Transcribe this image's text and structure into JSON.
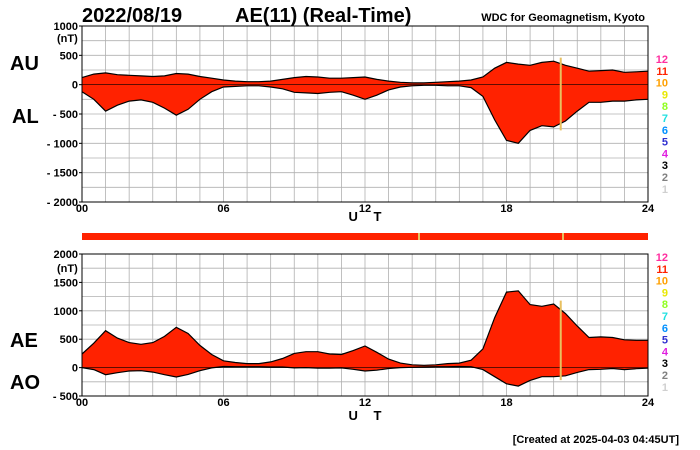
{
  "header": {
    "date": "2022/08/19",
    "title": "AE(11) (Real-Time)",
    "org": "WDC for Geomagnetism, Kyoto"
  },
  "footer": {
    "created": "[Created at 2025-04-03 04:45UT]"
  },
  "colors": {
    "fill": "#ff2200",
    "outline": "#000000",
    "grid": "#b0b0b0",
    "station_line": "#e8c060",
    "status_bar": "#ff2200"
  },
  "station_legend": [
    {
      "label": "12",
      "color": "#ff2fa0"
    },
    {
      "label": "11",
      "color": "#ff2200"
    },
    {
      "label": "10",
      "color": "#ffa000"
    },
    {
      "label": "9",
      "color": "#e8e800"
    },
    {
      "label": "8",
      "color": "#90ff20"
    },
    {
      "label": "7",
      "color": "#20e0e0"
    },
    {
      "label": "6",
      "color": "#0090ff"
    },
    {
      "label": "5",
      "color": "#3030d0"
    },
    {
      "label": "4",
      "color": "#e020e0"
    },
    {
      "label": "3",
      "color": "#000000"
    },
    {
      "label": "2",
      "color": "#808080"
    },
    {
      "label": "1",
      "color": "#d0d0d0"
    }
  ],
  "chart_data": [
    {
      "type": "area",
      "panel": "AU/AL",
      "labels": {
        "upper": "AU",
        "lower": "AL"
      },
      "unit": "(nT)",
      "xlabel": "U T",
      "xlim": [
        0,
        24
      ],
      "xticks": [
        "00",
        "06",
        "12",
        "18",
        "24"
      ],
      "ylim": [
        -2000,
        1000
      ],
      "yticks": [
        "1000",
        "500",
        "0",
        "- 500",
        "- 1000",
        "- 1500",
        "- 2000"
      ],
      "x": [
        0,
        0.5,
        1,
        1.5,
        2,
        2.5,
        3,
        3.5,
        4,
        4.5,
        5,
        5.5,
        6,
        6.5,
        7,
        7.5,
        8,
        8.5,
        9,
        9.5,
        10,
        10.5,
        11,
        11.5,
        12,
        12.5,
        13,
        13.5,
        14,
        14.5,
        15,
        15.5,
        16,
        16.5,
        17,
        17.5,
        18,
        18.5,
        19,
        19.5,
        20,
        20.5,
        21,
        21.5,
        22,
        22.5,
        23,
        23.5,
        24
      ],
      "series": [
        {
          "name": "AU",
          "values": [
            120,
            180,
            200,
            170,
            160,
            150,
            140,
            150,
            190,
            180,
            140,
            110,
            80,
            60,
            50,
            50,
            60,
            90,
            120,
            140,
            130,
            110,
            110,
            120,
            130,
            90,
            60,
            40,
            30,
            30,
            40,
            50,
            60,
            80,
            130,
            280,
            380,
            350,
            330,
            380,
            400,
            330,
            280,
            230,
            240,
            250,
            210,
            220,
            230
          ]
        },
        {
          "name": "AL",
          "values": [
            -120,
            -250,
            -450,
            -350,
            -280,
            -260,
            -300,
            -400,
            -520,
            -420,
            -250,
            -120,
            -40,
            -30,
            -20,
            -20,
            -40,
            -70,
            -130,
            -140,
            -150,
            -130,
            -120,
            -180,
            -250,
            -180,
            -90,
            -40,
            -20,
            -10,
            -10,
            -20,
            -20,
            -50,
            -200,
            -600,
            -950,
            -1000,
            -780,
            -700,
            -720,
            -620,
            -450,
            -300,
            -300,
            -280,
            -280,
            -260,
            -250
          ]
        }
      ]
    },
    {
      "type": "area",
      "panel": "AE/AO",
      "labels": {
        "upper": "AE",
        "lower": "AO"
      },
      "unit": "(nT)",
      "xlabel": "U T",
      "xlim": [
        0,
        24
      ],
      "xticks": [
        "00",
        "06",
        "12",
        "18",
        "24"
      ],
      "ylim": [
        -500,
        2000
      ],
      "yticks": [
        "2000",
        "1500",
        "1000",
        "500",
        "0",
        "- 500"
      ],
      "x": [
        0,
        0.5,
        1,
        1.5,
        2,
        2.5,
        3,
        3.5,
        4,
        4.5,
        5,
        5.5,
        6,
        6.5,
        7,
        7.5,
        8,
        8.5,
        9,
        9.5,
        10,
        10.5,
        11,
        11.5,
        12,
        12.5,
        13,
        13.5,
        14,
        14.5,
        15,
        15.5,
        16,
        16.5,
        17,
        17.5,
        18,
        18.5,
        19,
        19.5,
        20,
        20.5,
        21,
        21.5,
        22,
        22.5,
        23,
        23.5,
        24
      ],
      "series": [
        {
          "name": "AE",
          "values": [
            240,
            430,
            650,
            520,
            440,
            410,
            440,
            550,
            710,
            600,
            390,
            230,
            120,
            90,
            70,
            70,
            100,
            160,
            250,
            280,
            280,
            240,
            230,
            300,
            380,
            270,
            150,
            80,
            50,
            40,
            50,
            70,
            80,
            130,
            330,
            880,
            1330,
            1350,
            1110,
            1080,
            1120,
            950,
            730,
            530,
            540,
            530,
            490,
            480,
            480
          ]
        },
        {
          "name": "AO",
          "values": [
            0,
            -35,
            -125,
            -90,
            -60,
            -55,
            -80,
            -125,
            -165,
            -120,
            -55,
            -5,
            20,
            15,
            15,
            15,
            10,
            10,
            -5,
            0,
            -10,
            -10,
            -5,
            -30,
            -60,
            -45,
            -15,
            0,
            5,
            10,
            15,
            15,
            20,
            15,
            -35,
            -160,
            -285,
            -325,
            -225,
            -160,
            -160,
            -145,
            -85,
            -35,
            -30,
            -15,
            -35,
            -20,
            -10
          ]
        }
      ]
    }
  ]
}
